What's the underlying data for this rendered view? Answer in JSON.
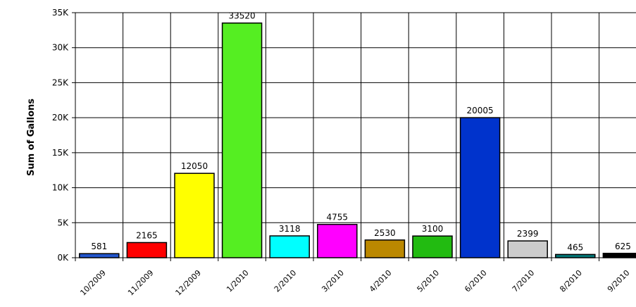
{
  "chart_data": {
    "type": "bar",
    "title": "",
    "xlabel": "",
    "ylabel": "Sum of Gallons",
    "ylim": [
      0,
      35000
    ],
    "yticks": [
      {
        "value": 0,
        "label": "0K"
      },
      {
        "value": 5000,
        "label": "5K"
      },
      {
        "value": 10000,
        "label": "10K"
      },
      {
        "value": 15000,
        "label": "15K"
      },
      {
        "value": 20000,
        "label": "20K"
      },
      {
        "value": 25000,
        "label": "25K"
      },
      {
        "value": 30000,
        "label": "30K"
      },
      {
        "value": 35000,
        "label": "35K"
      }
    ],
    "grid": true,
    "categories": [
      "10/2009",
      "11/2009",
      "12/2009",
      "1/2010",
      "2/2010",
      "3/2010",
      "4/2010",
      "5/2010",
      "6/2010",
      "7/2010",
      "8/2010",
      "9/2010"
    ],
    "values": [
      581,
      2165,
      12050,
      33520,
      3118,
      4755,
      2530,
      3100,
      20005,
      2399,
      465,
      625
    ],
    "colors": [
      "#2255cc",
      "#ff0000",
      "#ffff00",
      "#55ee22",
      "#00ffff",
      "#ff00ff",
      "#bb8800",
      "#22bb11",
      "#0033cc",
      "#cccccc",
      "#007777",
      "#000000"
    ]
  }
}
